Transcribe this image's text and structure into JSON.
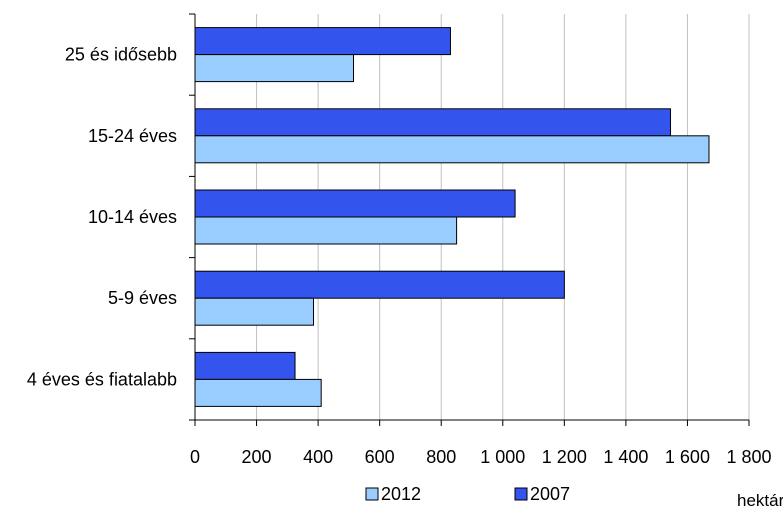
{
  "chart_data": {
    "type": "bar",
    "orientation": "horizontal",
    "categories": [
      "25 és idősebb",
      "15-24 éves",
      "10-14 éves",
      "5-9 éves",
      "4 éves és fiatalabb"
    ],
    "series": [
      {
        "name": "2007",
        "color": "#3355ee",
        "values": [
          830,
          1545,
          1040,
          1200,
          325
        ]
      },
      {
        "name": "2012",
        "color": "#99ccff",
        "values": [
          515,
          1670,
          850,
          385,
          410
        ]
      }
    ],
    "xlim": [
      0,
      1800
    ],
    "xticks": [
      0,
      200,
      400,
      600,
      800,
      1000,
      1200,
      1400,
      1600,
      1800
    ],
    "xtick_labels": [
      "0",
      "200",
      "400",
      "600",
      "800",
      "1 000",
      "1 200",
      "1 400",
      "1 600",
      "1 800"
    ],
    "xunit": "hektár",
    "grid": "vertical",
    "legend": {
      "position": "bottom",
      "entries": [
        "2012",
        "2007"
      ]
    }
  }
}
